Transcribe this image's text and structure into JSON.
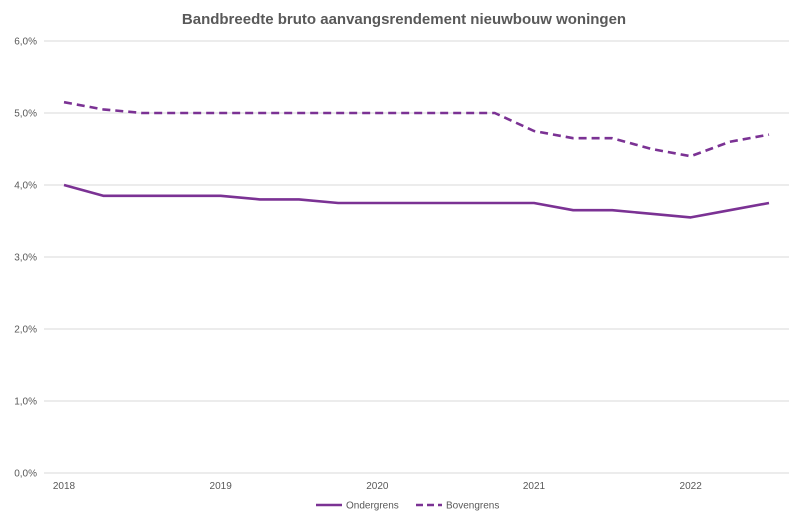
{
  "chart_data": {
    "type": "line",
    "title": "Bandbreedte bruto aanvangsrendement nieuwbouw woningen",
    "xlabel": "",
    "ylabel": "",
    "x": [
      2018.0,
      2018.25,
      2018.5,
      2018.75,
      2019.0,
      2019.25,
      2019.5,
      2019.75,
      2020.0,
      2020.25,
      2020.5,
      2020.75,
      2021.0,
      2021.25,
      2021.5,
      2021.75,
      2022.0,
      2022.25,
      2022.5
    ],
    "x_ticks": [
      {
        "value": 2018,
        "label": "2018"
      },
      {
        "value": 2019,
        "label": "2019"
      },
      {
        "value": 2020,
        "label": "2020"
      },
      {
        "value": 2021,
        "label": "2021"
      },
      {
        "value": 2022,
        "label": "2022"
      }
    ],
    "xlim": [
      2018.0,
      2022.5
    ],
    "ylim": [
      0,
      6
    ],
    "y_ticks": [
      {
        "value": 0,
        "label": "0,0%"
      },
      {
        "value": 1,
        "label": "1,0%"
      },
      {
        "value": 2,
        "label": "2,0%"
      },
      {
        "value": 3,
        "label": "3,0%"
      },
      {
        "value": 4,
        "label": "4,0%"
      },
      {
        "value": 5,
        "label": "5,0%"
      },
      {
        "value": 6,
        "label": "6,0%"
      }
    ],
    "grid": true,
    "legend_position": "bottom",
    "series": [
      {
        "name": "Ondergrens",
        "color": "#7b3294",
        "style": "solid",
        "values": [
          4.0,
          3.85,
          3.85,
          3.85,
          3.85,
          3.8,
          3.8,
          3.75,
          3.75,
          3.75,
          3.75,
          3.75,
          3.75,
          3.65,
          3.65,
          3.6,
          3.55,
          3.65,
          3.75
        ]
      },
      {
        "name": "Bovengrens",
        "color": "#7b3294",
        "style": "dashed",
        "values": [
          5.15,
          5.05,
          5.0,
          5.0,
          5.0,
          5.0,
          5.0,
          5.0,
          5.0,
          5.0,
          5.0,
          5.0,
          4.75,
          4.65,
          4.65,
          4.5,
          4.4,
          4.6,
          4.7
        ]
      }
    ]
  }
}
